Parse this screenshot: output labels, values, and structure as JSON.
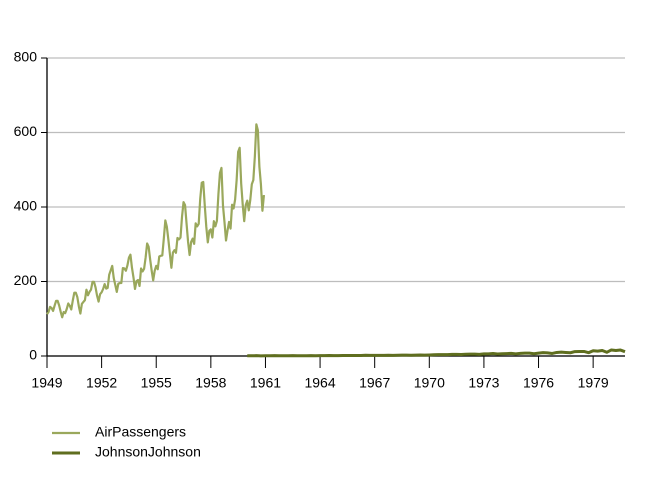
{
  "chart_data": {
    "type": "line",
    "xlim": [
      1949,
      1980.75
    ],
    "xticks": [
      1949,
      1952,
      1955,
      1958,
      1961,
      1964,
      1967,
      1970,
      1973,
      1976,
      1979
    ],
    "ylim": [
      0,
      800
    ],
    "yticks": [
      0,
      200,
      400,
      600,
      800
    ],
    "grid": true,
    "legend": "bottom-left",
    "series": [
      {
        "name": "AirPassengers",
        "color": "#9aa85c",
        "x": [
          1949,
          1949.0833,
          1949.1667,
          1949.25,
          1949.3333,
          1949.4167,
          1949.5,
          1949.5833,
          1949.6667,
          1949.75,
          1949.8333,
          1949.9167,
          1950,
          1950.0833,
          1950.1667,
          1950.25,
          1950.3333,
          1950.4167,
          1950.5,
          1950.5833,
          1950.6667,
          1950.75,
          1950.8333,
          1950.9167,
          1951,
          1951.0833,
          1951.1667,
          1951.25,
          1951.3333,
          1951.4167,
          1951.5,
          1951.5833,
          1951.6667,
          1951.75,
          1951.8333,
          1951.9167,
          1952,
          1952.0833,
          1952.1667,
          1952.25,
          1952.3333,
          1952.4167,
          1952.5,
          1952.5833,
          1952.6667,
          1952.75,
          1952.8333,
          1952.9167,
          1953,
          1953.0833,
          1953.1667,
          1953.25,
          1953.3333,
          1953.4167,
          1953.5,
          1953.5833,
          1953.6667,
          1953.75,
          1953.8333,
          1953.9167,
          1954,
          1954.0833,
          1954.1667,
          1954.25,
          1954.3333,
          1954.4167,
          1954.5,
          1954.5833,
          1954.6667,
          1954.75,
          1954.8333,
          1954.9167,
          1955,
          1955.0833,
          1955.1667,
          1955.25,
          1955.3333,
          1955.4167,
          1955.5,
          1955.5833,
          1955.6667,
          1955.75,
          1955.8333,
          1955.9167,
          1956,
          1956.0833,
          1956.1667,
          1956.25,
          1956.3333,
          1956.4167,
          1956.5,
          1956.5833,
          1956.6667,
          1956.75,
          1956.8333,
          1956.9167,
          1957,
          1957.0833,
          1957.1667,
          1957.25,
          1957.3333,
          1957.4167,
          1957.5,
          1957.5833,
          1957.6667,
          1957.75,
          1957.8333,
          1957.9167,
          1958,
          1958.0833,
          1958.1667,
          1958.25,
          1958.3333,
          1958.4167,
          1958.5,
          1958.5833,
          1958.6667,
          1958.75,
          1958.8333,
          1958.9167,
          1959,
          1959.0833,
          1959.1667,
          1959.25,
          1959.3333,
          1959.4167,
          1959.5,
          1959.5833,
          1959.6667,
          1959.75,
          1959.8333,
          1959.9167,
          1960,
          1960.0833,
          1960.1667,
          1960.25,
          1960.3333,
          1960.4167,
          1960.5,
          1960.5833,
          1960.6667,
          1960.75,
          1960.8333,
          1960.9167
        ],
        "values": [
          112,
          118,
          132,
          129,
          121,
          135,
          148,
          148,
          136,
          119,
          104,
          118,
          115,
          126,
          141,
          135,
          125,
          149,
          170,
          170,
          158,
          133,
          114,
          140,
          145,
          150,
          178,
          163,
          172,
          178,
          199,
          199,
          184,
          162,
          146,
          166,
          171,
          180,
          193,
          181,
          183,
          218,
          230,
          242,
          209,
          191,
          172,
          194,
          196,
          196,
          236,
          235,
          229,
          243,
          264,
          272,
          237,
          211,
          180,
          201,
          204,
          188,
          235,
          227,
          234,
          264,
          302,
          293,
          259,
          229,
          203,
          229,
          242,
          233,
          267,
          269,
          270,
          315,
          364,
          347,
          312,
          274,
          237,
          278,
          284,
          277,
          317,
          313,
          318,
          374,
          413,
          405,
          355,
          306,
          271,
          306,
          315,
          301,
          356,
          348,
          355,
          422,
          465,
          467,
          404,
          347,
          305,
          336,
          340,
          318,
          362,
          348,
          363,
          435,
          491,
          505,
          404,
          359,
          310,
          337,
          360,
          342,
          406,
          396,
          420,
          472,
          548,
          559,
          463,
          407,
          362,
          405,
          417,
          391,
          419,
          461,
          472,
          535,
          622,
          606,
          508,
          461,
          390,
          432
        ]
      },
      {
        "name": "JohnsonJohnson",
        "color": "#5f6e1f",
        "x": [
          1960,
          1960.25,
          1960.5,
          1960.75,
          1961,
          1961.25,
          1961.5,
          1961.75,
          1962,
          1962.25,
          1962.5,
          1962.75,
          1963,
          1963.25,
          1963.5,
          1963.75,
          1964,
          1964.25,
          1964.5,
          1964.75,
          1965,
          1965.25,
          1965.5,
          1965.75,
          1966,
          1966.25,
          1966.5,
          1966.75,
          1967,
          1967.25,
          1967.5,
          1967.75,
          1968,
          1968.25,
          1968.5,
          1968.75,
          1969,
          1969.25,
          1969.5,
          1969.75,
          1970,
          1970.25,
          1970.5,
          1970.75,
          1971,
          1971.25,
          1971.5,
          1971.75,
          1972,
          1972.25,
          1972.5,
          1972.75,
          1973,
          1973.25,
          1973.5,
          1973.75,
          1974,
          1974.25,
          1974.5,
          1974.75,
          1975,
          1975.25,
          1975.5,
          1975.75,
          1976,
          1976.25,
          1976.5,
          1976.75,
          1977,
          1977.25,
          1977.5,
          1977.75,
          1978,
          1978.25,
          1978.5,
          1978.75,
          1979,
          1979.25,
          1979.5,
          1979.75,
          1980,
          1980.25,
          1980.5,
          1980.75
        ],
        "values": [
          0.71,
          0.63,
          0.85,
          0.44,
          0.61,
          0.69,
          0.92,
          0.55,
          0.72,
          0.77,
          0.92,
          0.6,
          0.83,
          0.8,
          1,
          0.77,
          0.92,
          1,
          1.24,
          1,
          1.16,
          1.3,
          1.45,
          1.25,
          1.26,
          1.38,
          1.86,
          1.56,
          1.53,
          1.59,
          1.83,
          1.86,
          1.53,
          2.07,
          2.34,
          2.25,
          2.16,
          2.43,
          2.7,
          2.25,
          2.79,
          3.42,
          3.69,
          3.6,
          3.6,
          4.32,
          4.32,
          4.05,
          4.86,
          5.04,
          5.04,
          4.41,
          5.58,
          5.85,
          6.57,
          5.31,
          6.03,
          6.39,
          6.93,
          5.85,
          6.93,
          7.74,
          7.83,
          6.12,
          7.74,
          8.91,
          8.28,
          6.84,
          9.54,
          10.26,
          9.54,
          8.73,
          11.88,
          12.06,
          12.15,
          8.91,
          14.04,
          12.96,
          14.85,
          9.99,
          16.2,
          14.67,
          16.02,
          11.61
        ]
      }
    ]
  }
}
